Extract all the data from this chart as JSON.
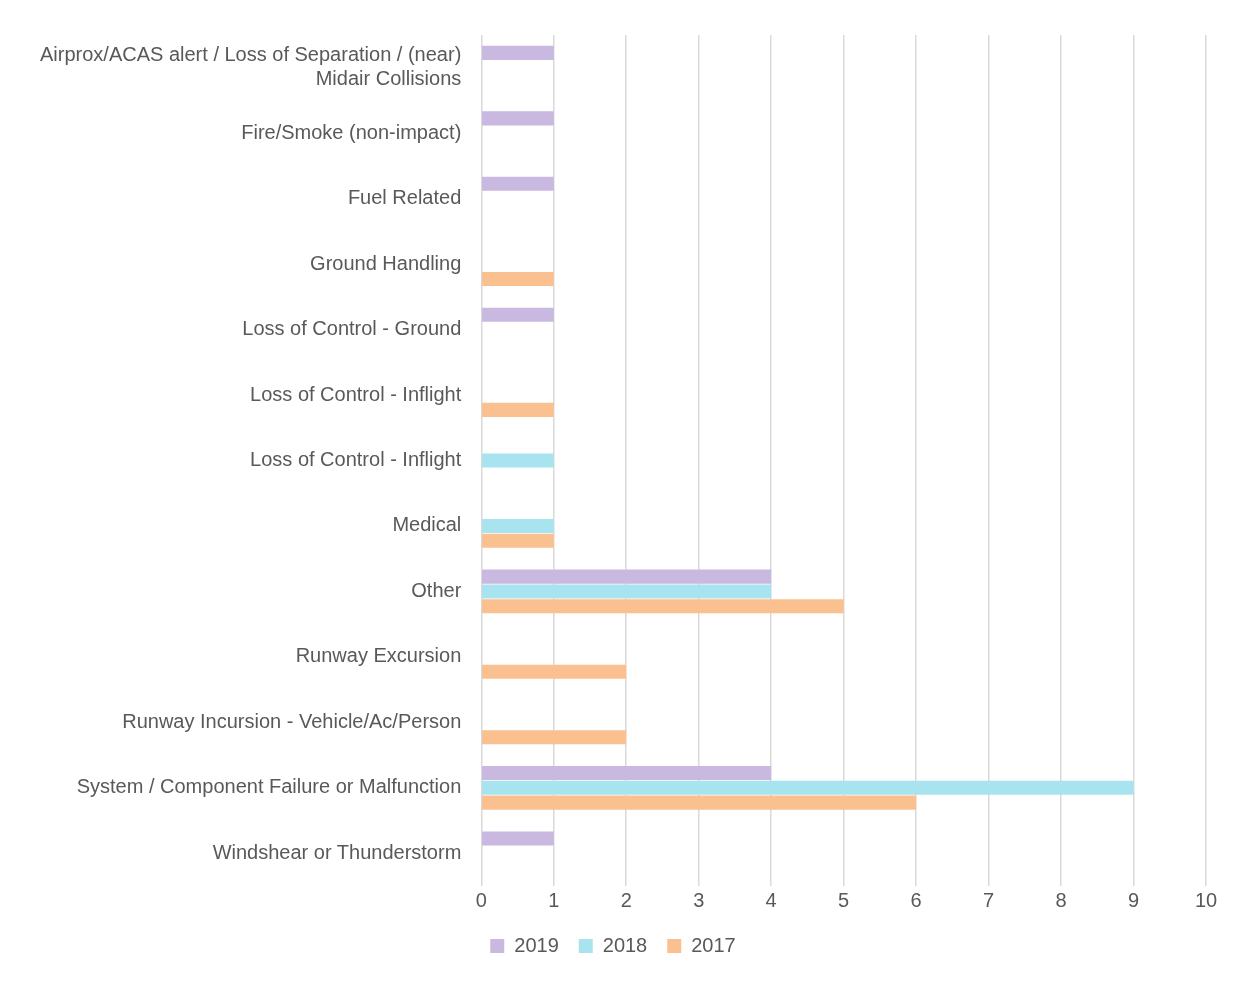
{
  "chart_data": {
    "type": "bar",
    "orientation": "horizontal",
    "categories": [
      "Airprox/ACAS alert / Loss of Separation / (near) Midair Collisions",
      "Fire/Smoke (non-impact)",
      "Fuel Related",
      "Ground Handling",
      "Loss of Control - Ground",
      "Loss of Control - Inflight",
      "Loss of Control - Inflight",
      "Medical",
      "Other",
      "Runway Excursion",
      "Runway Incursion - Vehicle/Ac/Person",
      "System / Component Failure or Malfunction",
      "Windshear or Thunderstorm"
    ],
    "series": [
      {
        "name": "2019",
        "color": "#c9b8e0",
        "values": [
          1,
          1,
          1,
          null,
          1,
          null,
          null,
          null,
          4,
          null,
          null,
          4,
          1
        ]
      },
      {
        "name": "2018",
        "color": "#a8e4f0",
        "values": [
          null,
          null,
          null,
          null,
          null,
          null,
          1,
          1,
          4,
          null,
          null,
          9,
          null
        ]
      },
      {
        "name": "2017",
        "color": "#fbc08f",
        "values": [
          null,
          null,
          null,
          1,
          null,
          1,
          null,
          1,
          5,
          2,
          2,
          6,
          null
        ]
      }
    ],
    "xlim": [
      0,
      10
    ],
    "xticks": [
      0,
      1,
      2,
      3,
      4,
      5,
      6,
      7,
      8,
      9,
      10
    ],
    "grid": "x",
    "legend": "bottom"
  }
}
